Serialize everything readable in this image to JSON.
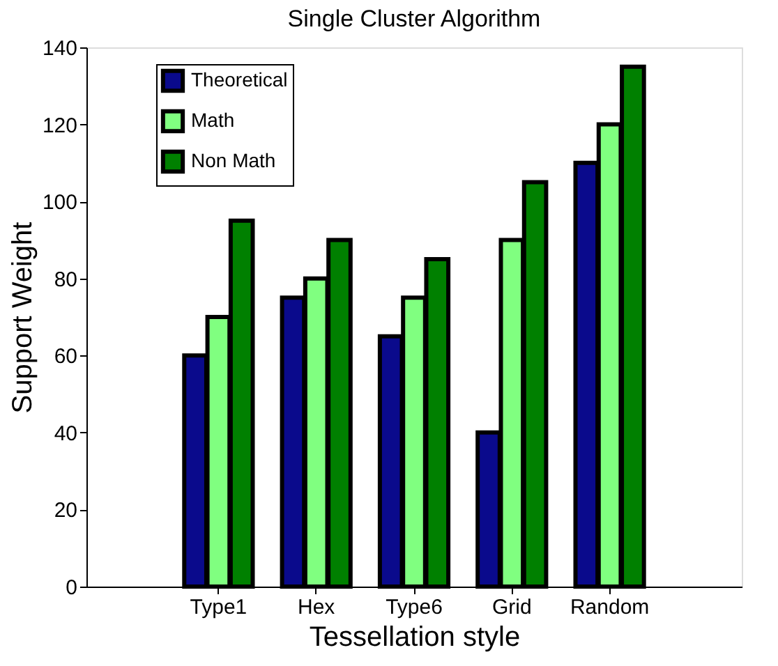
{
  "chart_data": {
    "type": "bar",
    "title": "Single Cluster Algorithm",
    "xlabel": "Tessellation style",
    "ylabel": "Support Weight",
    "categories": [
      "Type1",
      "Hex",
      "Type6",
      "Grid",
      "Random"
    ],
    "series": [
      {
        "name": "Theoretical",
        "color": "#0a0a8c",
        "values": [
          60,
          75,
          65,
          40,
          110
        ]
      },
      {
        "name": "Math",
        "color": "#80ff80",
        "values": [
          70,
          80,
          75,
          90,
          120
        ]
      },
      {
        "name": "Non Math",
        "color": "#008000",
        "values": [
          95,
          90,
          85,
          105,
          135
        ]
      }
    ],
    "ylim": [
      0,
      140
    ],
    "yticks": [
      0,
      20,
      40,
      60,
      80,
      100,
      120,
      140
    ],
    "grid": false,
    "legend": "top left"
  }
}
